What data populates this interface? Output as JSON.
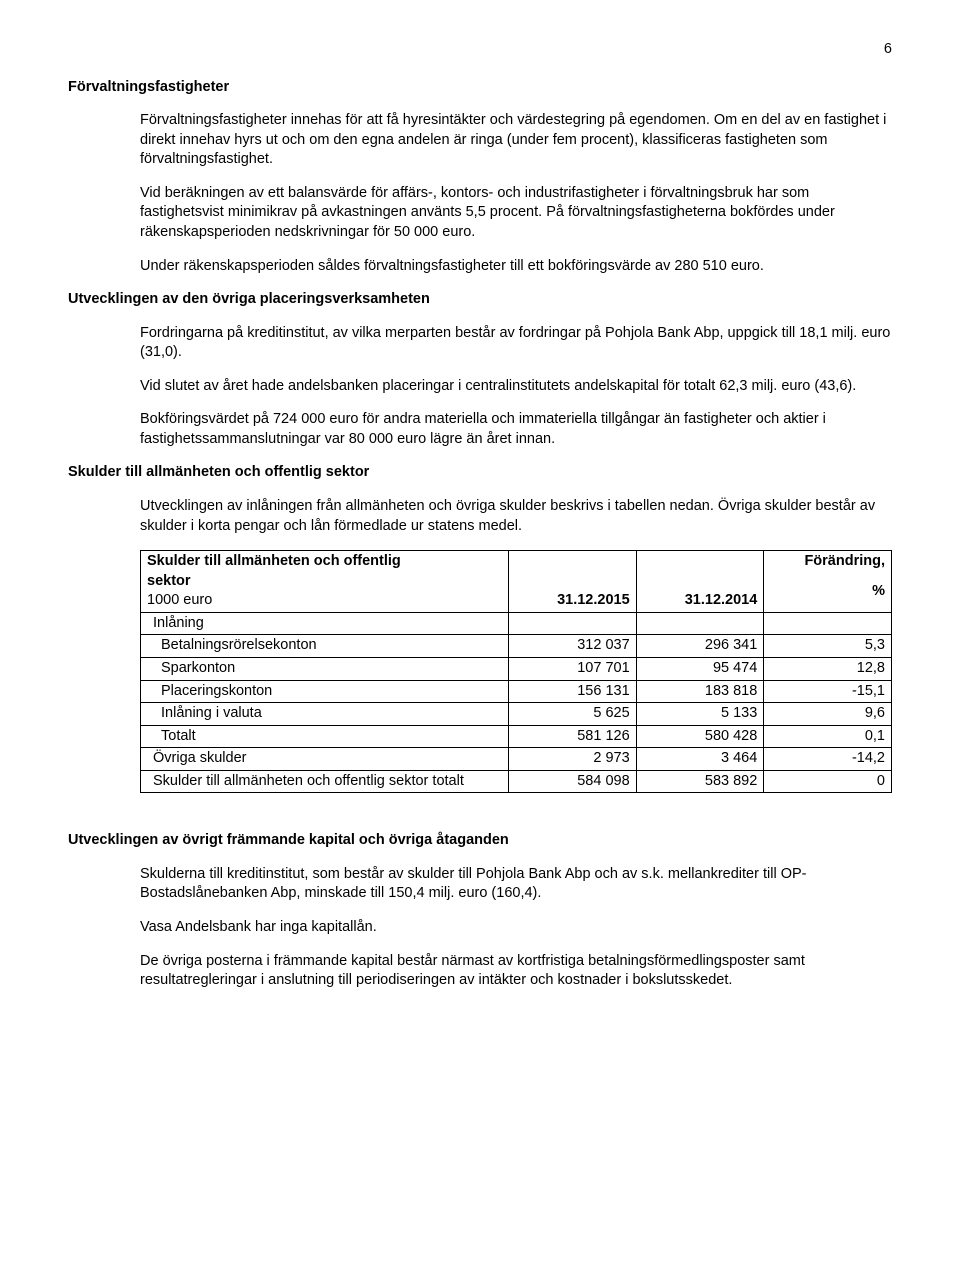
{
  "page_number": "6",
  "s1": {
    "heading": "Förvaltningsfastigheter",
    "p1": "Förvaltningsfastigheter innehas för att få hyresintäkter och värdestegring på egendomen. Om en del av en fastighet i direkt innehav hyrs ut och om den egna andelen är ringa (under fem procent), klassificeras fastigheten som förvaltningsfastighet.",
    "p2": "Vid beräkningen av ett balansvärde för affärs-, kontors- och industrifastigheter i förvaltningsbruk har som fastighetsvist minimikrav på avkastningen använts 5,5 procent. På förvaltningsfastigheterna bokfördes under räkenskapsperioden nedskrivningar för 50 000 euro.",
    "p3": "Under räkenskapsperioden såldes förvaltningsfastigheter till ett bokföringsvärde av 280 510 euro."
  },
  "s2": {
    "heading": "Utvecklingen av den övriga placeringsverksamheten",
    "p1": "Fordringarna på kreditinstitut, av vilka merparten består av fordringar på Pohjola Bank Abp, uppgick till 18,1 milj. euro (31,0).",
    "p2": "Vid slutet av året hade andelsbanken placeringar i centralinstitutets andelskapital för totalt 62,3 milj. euro (43,6).",
    "p3": "Bokföringsvärdet på 724 000 euro för andra materiella och immateriella tillgångar än fastigheter och aktier i fastighetssammanslutningar var 80 000 euro lägre än året innan."
  },
  "s3": {
    "heading": "Skulder till allmänheten och offentlig sektor",
    "p1": "Utvecklingen av inlåningen från allmänheten och övriga skulder beskrivs i tabellen nedan. Övriga skulder består av skulder i korta pengar och lån förmedlade ur statens medel."
  },
  "table": {
    "title_l1": "Skulder till allmänheten och offentlig",
    "title_l2": "sektor",
    "unit": "1000 euro",
    "col1": "31.12.2015",
    "col2": "31.12.2014",
    "col3_l1": "Förändring,",
    "col3_l2": "%",
    "rows": [
      {
        "label": "Inlåning",
        "pad": 0,
        "v1": "",
        "v2": "",
        "v3": ""
      },
      {
        "label": "Betalningsrörelsekonton",
        "pad": 1,
        "v1": "312 037",
        "v2": "296 341",
        "v3": "5,3"
      },
      {
        "label": "Sparkonton",
        "pad": 1,
        "v1": "107 701",
        "v2": "95 474",
        "v3": "12,8"
      },
      {
        "label": "Placeringskonton",
        "pad": 1,
        "v1": "156 131",
        "v2": "183 818",
        "v3": "-15,1"
      },
      {
        "label": "Inlåning i valuta",
        "pad": 1,
        "v1": "5 625",
        "v2": "5 133",
        "v3": "9,6"
      },
      {
        "label": "Totalt",
        "pad": 1,
        "v1": "581 126",
        "v2": "580 428",
        "v3": "0,1"
      },
      {
        "label": "Övriga skulder",
        "pad": 0,
        "v1": "2 973",
        "v2": "3 464",
        "v3": "-14,2"
      },
      {
        "label": "Skulder till allmänheten och offentlig sektor totalt",
        "pad": 0,
        "v1": "584 098",
        "v2": "583 892",
        "v3": "0"
      }
    ]
  },
  "s4": {
    "heading": "Utvecklingen av övrigt främmande kapital och övriga åtaganden",
    "p1": "Skulderna till kreditinstitut, som består av skulder till Pohjola Bank Abp och av s.k. mellankrediter till OP-Bostadslånebanken Abp, minskade till 150,4 milj. euro (160,4).",
    "p2": "Vasa Andelsbank har inga kapitallån.",
    "p3": "De övriga posterna i främmande kapital består närmast av kortfristiga betalningsförmedlingsposter samt resultatregleringar i anslutning till periodiseringen av intäkter och kostnader i bokslutsskedet."
  }
}
